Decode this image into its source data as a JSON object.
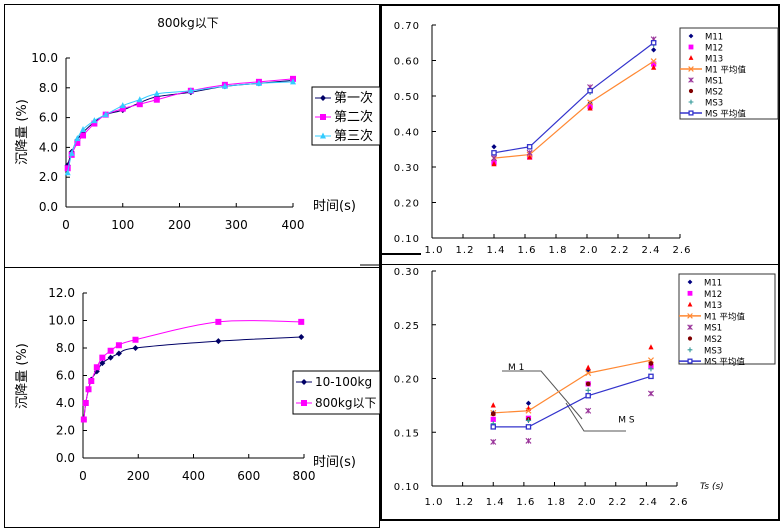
{
  "chart_data": [
    {
      "id": "tl",
      "type": "line",
      "title": "800kg以下",
      "xlabel": "时间(s)",
      "ylabel": "沉降量 (%)",
      "xlim": [
        0,
        400
      ],
      "ylim": [
        0,
        10
      ],
      "xticks": [
        0,
        100,
        200,
        300,
        400
      ],
      "yticks": [
        0,
        2,
        4,
        6,
        8,
        10
      ],
      "xtick_labels": [
        "0",
        "100",
        "200",
        "300",
        "400"
      ],
      "ytick_labels": [
        "0.0",
        "2.0",
        "4.0",
        "6.0",
        "8.0",
        "10.0"
      ],
      "legend_position": "right",
      "series": [
        {
          "name": "第一次",
          "color": "#000066",
          "marker": "diamond",
          "x": [
            3,
            10,
            20,
            30,
            50,
            70,
            100,
            130,
            160,
            220,
            280,
            340,
            400
          ],
          "y": [
            2.8,
            3.7,
            4.5,
            5.0,
            5.7,
            6.2,
            6.5,
            7.0,
            7.4,
            7.7,
            8.1,
            8.3,
            8.5
          ]
        },
        {
          "name": "第二次",
          "color": "#FF00FF",
          "marker": "square",
          "x": [
            3,
            10,
            20,
            30,
            50,
            70,
            100,
            130,
            160,
            220,
            280,
            340,
            400
          ],
          "y": [
            2.6,
            3.5,
            4.3,
            4.8,
            5.6,
            6.2,
            6.6,
            6.9,
            7.2,
            7.8,
            8.2,
            8.4,
            8.6
          ]
        },
        {
          "name": "第三次",
          "color": "#33CCFF",
          "marker": "triangle",
          "x": [
            3,
            10,
            20,
            30,
            50,
            70,
            100,
            130,
            160,
            220,
            280,
            340,
            400
          ],
          "y": [
            2.3,
            3.6,
            4.6,
            5.2,
            5.8,
            6.2,
            6.8,
            7.2,
            7.6,
            7.8,
            8.1,
            8.3,
            8.4
          ]
        }
      ]
    },
    {
      "id": "bl",
      "type": "line",
      "title": "",
      "xlabel": "时间(s)",
      "ylabel": "沉降量 (%)",
      "xlim": [
        0,
        800
      ],
      "ylim": [
        0,
        12
      ],
      "xticks": [
        0,
        200,
        400,
        600,
        800
      ],
      "yticks": [
        0,
        2,
        4,
        6,
        8,
        10,
        12
      ],
      "xtick_labels": [
        "0",
        "200",
        "400",
        "600",
        "800"
      ],
      "ytick_labels": [
        "0.0",
        "2.0",
        "4.0",
        "6.0",
        "8.0",
        "10.0",
        "12.0"
      ],
      "legend_position": "right",
      "series": [
        {
          "name": "10-100kg",
          "color": "#000066",
          "marker": "diamond",
          "x": [
            3,
            10,
            20,
            30,
            50,
            70,
            100,
            130,
            190,
            490,
            790
          ],
          "y": [
            2.8,
            4.0,
            5.0,
            5.7,
            6.3,
            6.9,
            7.3,
            7.6,
            8.0,
            8.5,
            8.8
          ]
        },
        {
          "name": "800kg以下",
          "color": "#FF00FF",
          "marker": "square",
          "x": [
            3,
            10,
            20,
            30,
            50,
            70,
            100,
            130,
            190,
            490,
            790
          ],
          "y": [
            2.8,
            4.0,
            5.0,
            5.6,
            6.6,
            7.3,
            7.8,
            8.2,
            8.6,
            9.9,
            9.9
          ]
        }
      ]
    },
    {
      "id": "tr",
      "type": "scatter",
      "title": "",
      "xlabel": "",
      "ylabel": "",
      "xlim": [
        1.0,
        2.6
      ],
      "ylim": [
        0.1,
        0.7
      ],
      "xticks": [
        1.0,
        1.2,
        1.4,
        1.6,
        1.8,
        2.0,
        2.2,
        2.4,
        2.6
      ],
      "yticks": [
        0.1,
        0.2,
        0.3,
        0.4,
        0.5,
        0.6,
        0.7
      ],
      "xtick_labels": [
        "1.0",
        "1.2",
        "1.4",
        "1.6",
        "1.8",
        "2.0",
        "2.2",
        "2.4",
        "2.6"
      ],
      "ytick_labels": [
        "0.10",
        "0.20",
        "0.30",
        "0.40",
        "0.50",
        "0.60",
        "0.70"
      ],
      "legend_position": "top-right",
      "series": [
        {
          "name": "M11",
          "color": "#000080",
          "marker": "diamond",
          "line": false,
          "x": [
            1.4,
            1.63,
            2.02,
            2.43
          ],
          "y": [
            0.357,
            0.33,
            0.48,
            0.63
          ]
        },
        {
          "name": "M12",
          "color": "#FF00FF",
          "marker": "square",
          "line": false,
          "x": [
            1.4,
            1.63,
            2.02,
            2.43
          ],
          "y": [
            0.312,
            0.328,
            0.47,
            0.59
          ]
        },
        {
          "name": "M13",
          "color": "#FF0000",
          "marker": "triangle",
          "line": false,
          "x": [
            1.4,
            1.63,
            2.02,
            2.43
          ],
          "y": [
            0.308,
            0.327,
            0.465,
            0.58
          ]
        },
        {
          "name": "M1 平均值",
          "color": "#FF8833",
          "marker": "x",
          "line": true,
          "x": [
            1.4,
            1.63,
            2.02,
            2.43
          ],
          "y": [
            0.325,
            0.335,
            0.482,
            0.598
          ]
        },
        {
          "name": "MS1",
          "color": "#993399",
          "marker": "star",
          "line": false,
          "x": [
            1.4,
            1.63,
            2.02,
            2.43
          ],
          "y": [
            0.325,
            0.34,
            0.525,
            0.66
          ]
        },
        {
          "name": "MS2",
          "color": "#800000",
          "marker": "circle",
          "line": false,
          "x": [
            1.4,
            1.63,
            2.02,
            2.43
          ],
          "y": [
            0.34,
            0.357,
            0.515,
            0.648
          ]
        },
        {
          "name": "MS3",
          "color": "#339999",
          "marker": "plus",
          "line": false,
          "x": [
            1.4,
            1.63,
            2.02,
            2.43
          ],
          "y": [
            0.34,
            0.357,
            0.51,
            0.645
          ]
        },
        {
          "name": "MS 平均值",
          "color": "#3333CC",
          "marker": "open-square",
          "line": true,
          "x": [
            1.4,
            1.63,
            2.02,
            2.43
          ],
          "y": [
            0.34,
            0.357,
            0.515,
            0.65
          ]
        }
      ]
    },
    {
      "id": "br",
      "type": "scatter",
      "title": "",
      "xlabel": "Ts (s)",
      "ylabel": "",
      "xlim": [
        1.0,
        2.6
      ],
      "ylim": [
        0.1,
        0.3
      ],
      "xticks": [
        1.0,
        1.2,
        1.4,
        1.6,
        1.8,
        2.0,
        2.2,
        2.4,
        2.6
      ],
      "yticks": [
        0.1,
        0.15,
        0.2,
        0.25,
        0.3
      ],
      "xtick_labels": [
        "1.0",
        "1.2",
        "1.4",
        "1.6",
        "1.8",
        "2.0",
        "2.2",
        "2.4",
        "2.6"
      ],
      "ytick_labels": [
        "0.10",
        "0.15",
        "0.20",
        "0.25",
        "0.30"
      ],
      "legend_position": "top-right",
      "annotations": [
        {
          "text": "M 1",
          "x": 1.55,
          "y": 0.208
        },
        {
          "text": "M S",
          "x": 2.27,
          "y": 0.159
        }
      ],
      "series": [
        {
          "name": "M11",
          "color": "#000080",
          "marker": "diamond",
          "line": false,
          "x": [
            1.4,
            1.63,
            2.02,
            2.43
          ],
          "y": [
            0.168,
            0.177,
            0.208,
            0.213
          ]
        },
        {
          "name": "M12",
          "color": "#FF00FF",
          "marker": "square",
          "line": false,
          "x": [
            1.4,
            1.63,
            2.02,
            2.43
          ],
          "y": [
            0.162,
            0.163,
            0.195,
            0.211
          ]
        },
        {
          "name": "M13",
          "color": "#FF0000",
          "marker": "triangle",
          "line": false,
          "x": [
            1.4,
            1.63,
            2.02,
            2.43
          ],
          "y": [
            0.175,
            0.172,
            0.21,
            0.229
          ]
        },
        {
          "name": "M1 平均值",
          "color": "#FF8833",
          "marker": "x",
          "line": true,
          "x": [
            1.4,
            1.63,
            2.02,
            2.43
          ],
          "y": [
            0.168,
            0.17,
            0.205,
            0.217
          ]
        },
        {
          "name": "MS1",
          "color": "#993399",
          "marker": "star",
          "line": false,
          "x": [
            1.4,
            1.63,
            2.02,
            2.43
          ],
          "y": [
            0.141,
            0.142,
            0.17,
            0.186
          ]
        },
        {
          "name": "MS2",
          "color": "#800000",
          "marker": "circle",
          "line": false,
          "x": [
            1.4,
            1.63,
            2.02,
            2.43
          ],
          "y": [
            0.167,
            0.162,
            0.195,
            0.214
          ]
        },
        {
          "name": "MS3",
          "color": "#339999",
          "marker": "plus",
          "line": false,
          "x": [
            1.4,
            1.63,
            2.02,
            2.43
          ],
          "y": [
            0.158,
            0.161,
            0.189,
            0.209
          ]
        },
        {
          "name": "MS 平均值",
          "color": "#3333CC",
          "marker": "open-square",
          "line": true,
          "x": [
            1.4,
            1.63,
            2.02,
            2.43
          ],
          "y": [
            0.155,
            0.155,
            0.184,
            0.202
          ]
        }
      ]
    }
  ]
}
